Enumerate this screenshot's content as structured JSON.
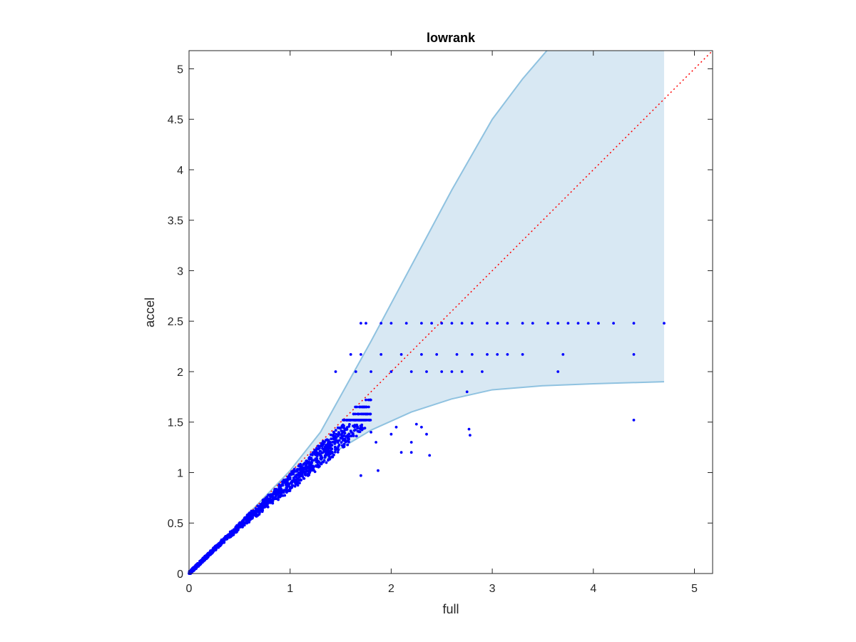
{
  "chart_data": {
    "type": "scatter",
    "title": "lowrank",
    "xlabel": "full",
    "ylabel": "accel",
    "xlim": [
      0,
      5.18
    ],
    "ylim": [
      0,
      5.18
    ],
    "xticks": [
      0,
      1,
      2,
      3,
      4,
      5
    ],
    "yticks": [
      0,
      0.5,
      1,
      1.5,
      2,
      2.5,
      3,
      3.5,
      4,
      4.5,
      5
    ],
    "grid": false,
    "colors": {
      "points": "#0000ff",
      "band_fill": "#d8e8f3",
      "band_edge": "#8fc2e0",
      "reference_line": "#ff0000",
      "axes": "#262626"
    },
    "reference_line": {
      "style": "dotted",
      "points": [
        [
          0,
          0
        ],
        [
          5.18,
          5.18
        ]
      ]
    },
    "band": {
      "upper": [
        [
          0,
          0
        ],
        [
          0.5,
          0.5
        ],
        [
          1.0,
          1.02
        ],
        [
          1.3,
          1.4
        ],
        [
          1.55,
          1.85
        ],
        [
          1.8,
          2.3
        ],
        [
          2.2,
          3.05
        ],
        [
          2.6,
          3.8
        ],
        [
          3.0,
          4.5
        ],
        [
          3.3,
          4.9
        ],
        [
          3.54,
          5.18
        ],
        [
          4.7,
          5.18
        ]
      ],
      "lower": [
        [
          0,
          0
        ],
        [
          0.5,
          0.45
        ],
        [
          1.0,
          0.88
        ],
        [
          1.4,
          1.18
        ],
        [
          1.8,
          1.42
        ],
        [
          2.2,
          1.6
        ],
        [
          2.6,
          1.73
        ],
        [
          3.0,
          1.82
        ],
        [
          3.5,
          1.86
        ],
        [
          4.0,
          1.88
        ],
        [
          4.7,
          1.9
        ]
      ]
    },
    "scatter": {
      "bulk_range": [
        0,
        1.8
      ],
      "row_levels": [
        1.52,
        1.58,
        1.65,
        1.72,
        1.79,
        1.86,
        1.93,
        2.0,
        2.17,
        2.48
      ],
      "tail_rows": [
        {
          "y": 2.48,
          "x": [
            1.7,
            1.75,
            1.9,
            2.0,
            2.15,
            2.3,
            2.4,
            2.5,
            2.6,
            2.7,
            2.8,
            2.95,
            3.05,
            3.15,
            3.3,
            3.4,
            3.55,
            3.65,
            3.75,
            3.85,
            3.95,
            4.05,
            4.2,
            4.4,
            4.7
          ]
        },
        {
          "y": 2.17,
          "x": [
            1.6,
            1.7,
            1.9,
            2.1,
            2.3,
            2.45,
            2.65,
            2.8,
            2.95,
            3.05,
            3.15,
            3.3,
            3.7,
            4.4
          ]
        },
        {
          "y": 2.0,
          "x": [
            1.45,
            1.65,
            1.8,
            2.0,
            2.2,
            2.35,
            2.5,
            2.6,
            2.7,
            2.9,
            3.65
          ]
        }
      ],
      "outliers": [
        [
          1.8,
          1.4
        ],
        [
          1.85,
          1.3
        ],
        [
          2.0,
          1.38
        ],
        [
          2.05,
          1.45
        ],
        [
          2.1,
          1.2
        ],
        [
          2.2,
          1.3
        ],
        [
          2.3,
          1.45
        ],
        [
          2.35,
          1.38
        ],
        [
          2.38,
          1.17
        ],
        [
          2.2,
          1.2
        ],
        [
          2.25,
          1.48
        ],
        [
          1.7,
          0.97
        ],
        [
          1.87,
          1.02
        ],
        [
          2.77,
          1.43
        ],
        [
          2.78,
          1.37
        ],
        [
          2.75,
          1.8
        ],
        [
          4.4,
          1.52
        ]
      ]
    }
  }
}
